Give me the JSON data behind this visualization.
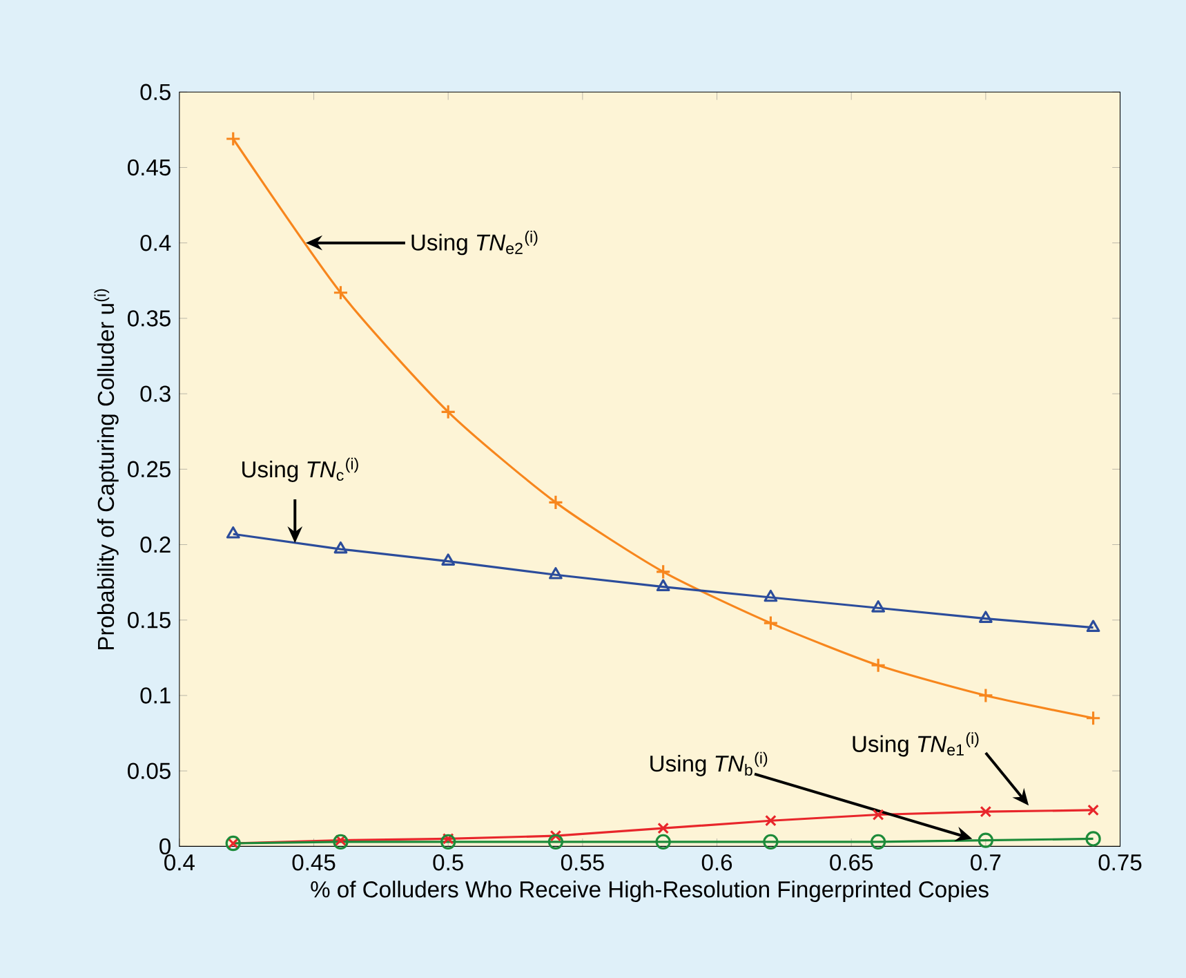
{
  "chart_data": {
    "type": "line",
    "xlabel": "% of Colluders Who Receive High-Resolution Fingerprinted Copies",
    "ylabel": "Probability of Capturing Colluder u$^{(i)}$",
    "x": [
      0.42,
      0.46,
      0.5,
      0.54,
      0.58,
      0.62,
      0.66,
      0.7,
      0.74
    ],
    "series": [
      {
        "color": "#f7861d",
        "marker": "plus",
        "values": [
          0.469,
          0.367,
          0.288,
          0.228,
          0.182,
          0.148,
          0.12,
          0.1,
          0.085
        ]
      },
      {
        "color": "#2b4c9b",
        "marker": "triangle",
        "values": [
          0.207,
          0.197,
          0.189,
          0.18,
          0.172,
          0.165,
          0.158,
          0.151,
          0.145
        ]
      },
      {
        "color": "#e8262b",
        "marker": "cross",
        "values": [
          0.002,
          0.004,
          0.005,
          0.007,
          0.012,
          0.017,
          0.021,
          0.023,
          0.024
        ]
      },
      {
        "color": "#1d8b3a",
        "marker": "circle",
        "values": [
          0.002,
          0.003,
          0.003,
          0.003,
          0.003,
          0.003,
          0.003,
          0.004,
          0.005
        ]
      }
    ],
    "xlim": [
      0.4,
      0.75
    ],
    "ylim": [
      0,
      0.5
    ],
    "xticks": [
      0.4,
      0.45,
      0.5,
      0.55,
      0.6,
      0.65,
      0.7,
      0.75
    ],
    "yticks": [
      0,
      0.05,
      0.1,
      0.15,
      0.2,
      0.25,
      0.3,
      0.35,
      0.4,
      0.45,
      0.5
    ],
    "grid": false,
    "annotations": [
      {
        "text": "Using *TN*$_{e2}$$^{(i)}$",
        "x": 0.447,
        "y": 0.4
      },
      {
        "text": "Using *TN*$_{c}$$^{(i)}$",
        "x": 0.443,
        "y": 0.201
      },
      {
        "text": "Using *TN*$_{b}$$^{(i)}$",
        "x": 0.695,
        "y": 0.005
      },
      {
        "text": "Using *TN*$_{e1}$$^{(i)}$",
        "x": 0.716,
        "y": 0.027
      }
    ]
  }
}
